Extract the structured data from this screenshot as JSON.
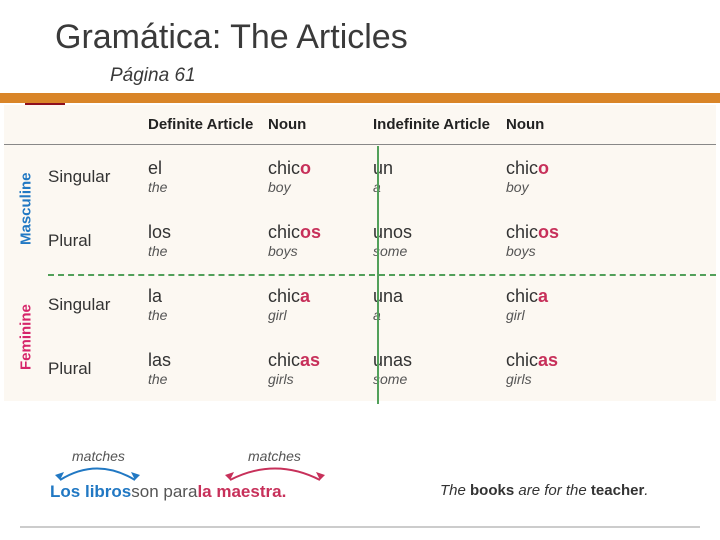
{
  "title": "Gramática: The Articles",
  "subtitle": "Página 61",
  "colors": {
    "accent_red": "#8e0f1f",
    "accent_orange": "#d98528",
    "masc_blue": "#2178c3",
    "fem_pink": "#d6256a",
    "highlight": "#c7305a",
    "dash_green": "#52a05a",
    "bg_cream": "#fcf8f2"
  },
  "headers": {
    "def": "Definite Article",
    "noun": "Noun",
    "indef": "Indefinite Article"
  },
  "genders": {
    "masc": "Masculine",
    "fem": "Feminine"
  },
  "rows": [
    {
      "number": "Singular",
      "def": "el",
      "def_t": "the",
      "noun1_base": "chic",
      "noun1_hl": "o",
      "noun1_t": "boy",
      "indef": "un",
      "indef_t": "a",
      "noun2_base": "chic",
      "noun2_hl": "o",
      "noun2_t": "boy"
    },
    {
      "number": "Plural",
      "def": "los",
      "def_t": "the",
      "noun1_base": "chic",
      "noun1_hl": "os",
      "noun1_t": "boys",
      "indef": "unos",
      "indef_t": "some",
      "noun2_base": "chic",
      "noun2_hl": "os",
      "noun2_t": "boys"
    },
    {
      "number": "Singular",
      "def": "la",
      "def_t": "the",
      "noun1_base": "chic",
      "noun1_hl": "a",
      "noun1_t": "girl",
      "indef": "una",
      "indef_t": "a",
      "noun2_base": "chic",
      "noun2_hl": "a",
      "noun2_t": "girl"
    },
    {
      "number": "Plural",
      "def": "las",
      "def_t": "the",
      "noun1_base": "chic",
      "noun1_hl": "as",
      "noun1_t": "girls",
      "indef": "unas",
      "indef_t": "some",
      "noun2_base": "chic",
      "noun2_hl": "as",
      "noun2_t": "girls"
    }
  ],
  "sentence": {
    "matches": "matches",
    "w1": "Los",
    "w2": "libros",
    "mid": " son para ",
    "w3": "la",
    "w4": "maestra",
    "period": ".",
    "trans_pre": "The ",
    "trans_b1": "books",
    "trans_mid": " are for the ",
    "trans_b2": "teacher",
    "trans_suf": "."
  }
}
